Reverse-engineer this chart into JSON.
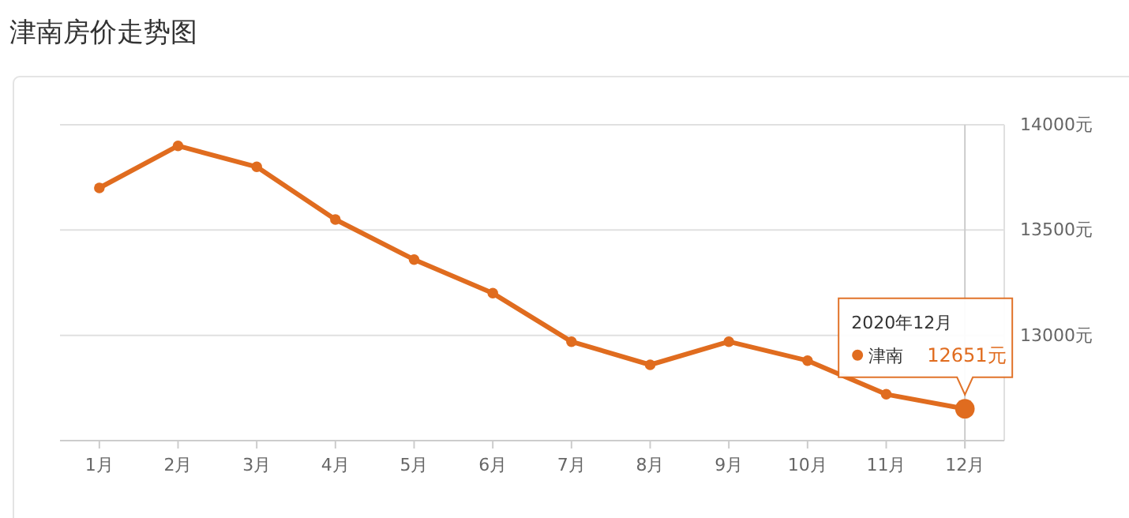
{
  "chart_data": {
    "type": "line",
    "title": "津南房价走势图",
    "categories": [
      "1月",
      "2月",
      "3月",
      "4月",
      "5月",
      "6月",
      "7月",
      "8月",
      "9月",
      "10月",
      "11月",
      "12月"
    ],
    "series": [
      {
        "name": "津南",
        "color": "#e06c1f",
        "values": [
          13700,
          13900,
          13800,
          13550,
          13360,
          13200,
          12970,
          12860,
          12970,
          12880,
          12720,
          12651
        ],
        "value_labels": [
          null,
          null,
          null,
          null,
          null,
          null,
          null,
          null,
          null,
          null,
          null,
          "12651元"
        ]
      }
    ],
    "ylim": [
      12500,
      14000
    ],
    "yticks": [
      {
        "value": 13000,
        "label": "13000元"
      },
      {
        "value": 13500,
        "label": "13500元"
      },
      {
        "value": 14000,
        "label": "14000元"
      }
    ],
    "grid": "y",
    "marker": "circle",
    "line_style": "solid",
    "ref_lines": [
      {
        "axis": "x",
        "value": "12月",
        "color": "#cccccc"
      }
    ],
    "annotations": [
      "2020年12月"
    ]
  }
}
